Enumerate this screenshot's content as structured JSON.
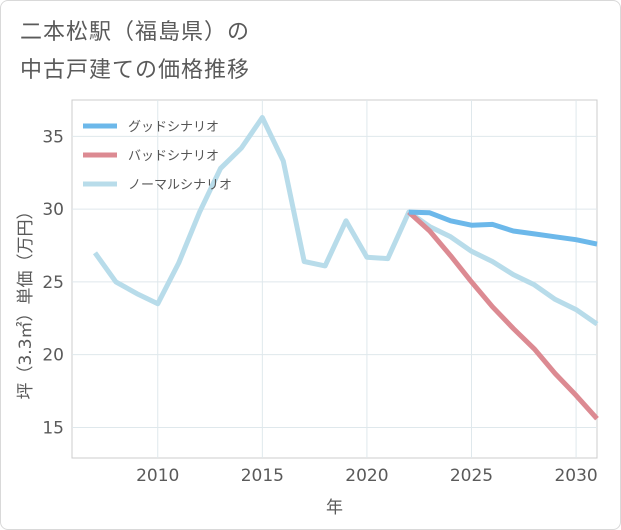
{
  "title_lines": [
    "二本松駅（福島県）の",
    "中古戸建ての価格推移"
  ],
  "chart_data": {
    "type": "line",
    "title": "二本松駅（福島県）の中古戸建ての価格推移",
    "xlabel": "年",
    "ylabel": "坪（3.3㎡）単価（万円）",
    "xlim": [
      2005.9,
      2031
    ],
    "ylim": [
      12.9,
      37.5
    ],
    "xticks": [
      2010,
      2015,
      2020,
      2025,
      2030
    ],
    "yticks": [
      15,
      20,
      25,
      30,
      35
    ],
    "grid": true,
    "legend_position": "top-left",
    "series": [
      {
        "name": "グッドシナリオ",
        "color": "#6cb8ea",
        "x": [
          2022,
          2023,
          2024,
          2025,
          2026,
          2027,
          2028,
          2029,
          2030,
          2031
        ],
        "y": [
          29.8,
          29.75,
          29.2,
          28.9,
          28.95,
          28.5,
          28.3,
          28.1,
          27.9,
          27.6
        ]
      },
      {
        "name": "バッドシナリオ",
        "color": "#dc8a92",
        "x": [
          2022,
          2023,
          2024,
          2025,
          2026,
          2027,
          2028,
          2029,
          2030,
          2031
        ],
        "y": [
          29.8,
          28.5,
          26.8,
          25.0,
          23.3,
          21.8,
          20.4,
          18.7,
          17.2,
          15.6
        ]
      },
      {
        "name": "ノーマルシナリオ",
        "color": "#b8dcea",
        "x": [
          2007,
          2008,
          2009,
          2010,
          2011,
          2012,
          2013,
          2014,
          2015,
          2016,
          2017,
          2018,
          2019,
          2020,
          2021,
          2022,
          2023,
          2024,
          2025,
          2026,
          2027,
          2028,
          2029,
          2030,
          2031
        ],
        "y": [
          27.0,
          25.0,
          24.2,
          23.5,
          26.3,
          29.8,
          32.8,
          34.2,
          36.3,
          33.3,
          26.4,
          26.1,
          29.2,
          26.7,
          26.6,
          29.8,
          28.8,
          28.1,
          27.1,
          26.4,
          25.5,
          24.8,
          23.8,
          23.1,
          22.1
        ]
      }
    ]
  }
}
